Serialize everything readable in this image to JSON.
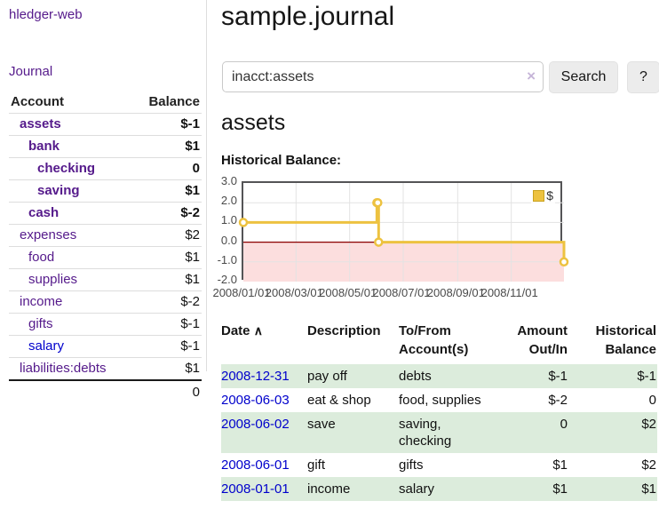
{
  "app": {
    "brand": "hledger-web"
  },
  "sidebar": {
    "journal_link": "Journal",
    "accounts": {
      "col_account": "Account",
      "col_balance": "Balance",
      "rows": [
        {
          "name": "assets",
          "depth": 1,
          "bold": true,
          "balance": "$-1",
          "neg": "strong"
        },
        {
          "name": "bank",
          "depth": 2,
          "bold": true,
          "balance": "$1",
          "neg": "none"
        },
        {
          "name": "checking",
          "depth": 3,
          "bold": true,
          "balance": "0",
          "neg": "none"
        },
        {
          "name": "saving",
          "depth": 3,
          "bold": true,
          "balance": "$1",
          "neg": "none"
        },
        {
          "name": "cash",
          "depth": 2,
          "bold": true,
          "balance": "$-2",
          "neg": "strong"
        },
        {
          "name": "expenses",
          "depth": 1,
          "bold": false,
          "balance": "$2",
          "neg": "none"
        },
        {
          "name": "food",
          "depth": 2,
          "bold": false,
          "balance": "$1",
          "neg": "none"
        },
        {
          "name": "supplies",
          "depth": 2,
          "bold": false,
          "balance": "$1",
          "neg": "none"
        },
        {
          "name": "income",
          "depth": 1,
          "bold": false,
          "balance": "$-2",
          "neg": "muted"
        },
        {
          "name": "gifts",
          "depth": 2,
          "bold": false,
          "balance": "$-1",
          "neg": "muted"
        },
        {
          "name": "salary",
          "depth": 2,
          "bold": false,
          "balance": "$-1",
          "neg": "muted",
          "link": "blue"
        },
        {
          "name": "liabilities:debts",
          "depth": 1,
          "bold": false,
          "balance": "$1",
          "neg": "none"
        }
      ],
      "total": "0"
    }
  },
  "main": {
    "title": "sample.journal",
    "search": {
      "value": "inacct:assets",
      "clear_icon": "×",
      "button": "Search",
      "help": "?"
    },
    "account_heading": "assets",
    "chart_heading": "Historical Balance:"
  },
  "chart_data": {
    "type": "line",
    "step": true,
    "title": "Historical Balance",
    "series": [
      {
        "name": "$",
        "points": [
          [
            "2008-01-01",
            1
          ],
          [
            "2008-06-01",
            2
          ],
          [
            "2008-06-02",
            2
          ],
          [
            "2008-06-03",
            0
          ],
          [
            "2008-12-31",
            -1
          ]
        ]
      }
    ],
    "x_range": [
      "2008-01-01",
      "2008-12-31"
    ],
    "ylim": [
      -2,
      3
    ],
    "yticks": [
      3,
      2,
      1,
      0,
      -1,
      -2
    ],
    "ytick_labels": [
      "3.0",
      "2.0",
      "1.0",
      "0.0",
      "-1.0",
      "-2.0"
    ],
    "xticks": [
      "2008/01/01",
      "2008/03/01",
      "2008/05/01",
      "2008/07/01",
      "2008/09/01",
      "2008/11/01"
    ],
    "grid": true,
    "legend": {
      "label": "$",
      "position": "top-right"
    },
    "line_color": "#edc240",
    "marker_fill": "#ffffff",
    "negative_area_color": "#fcdede",
    "zero_line_color": "#8b0000",
    "grid_color": "#e3e3e3"
  },
  "register": {
    "headers": {
      "date": "Date",
      "sort_icon": "∧",
      "description": "Description",
      "accounts": "To/From Account(s)",
      "amount": "Amount Out/In",
      "balance": "Historical Balance"
    },
    "rows": [
      {
        "date": "2008-12-31",
        "description": "pay off",
        "accounts": "debts",
        "amount": "$-1",
        "amount_neg": true,
        "balance": "$-1",
        "balance_neg": true
      },
      {
        "date": "2008-06-03",
        "description": "eat & shop",
        "accounts": "food, supplies",
        "amount": "$-2",
        "amount_neg": true,
        "balance": "0",
        "balance_neg": false
      },
      {
        "date": "2008-06-02",
        "description": "save",
        "accounts": "saving, checking",
        "amount": "0",
        "amount_neg": false,
        "balance": "$2",
        "balance_neg": false
      },
      {
        "date": "2008-06-01",
        "description": "gift",
        "accounts": "gifts",
        "amount": "$1",
        "amount_neg": false,
        "balance": "$2",
        "balance_neg": false
      },
      {
        "date": "2008-01-01",
        "description": "income",
        "accounts": "salary",
        "amount": "$1",
        "amount_neg": false,
        "balance": "$1",
        "balance_neg": false
      }
    ]
  },
  "colors": {
    "link_purple": "#551a8b",
    "link_blue": "#0000cc",
    "negative_strong": "#8a1014",
    "negative_muted": "#bb6f77",
    "row_green": "#dcecdc",
    "button_bg": "#ececec",
    "chart_line": "#edc240"
  }
}
